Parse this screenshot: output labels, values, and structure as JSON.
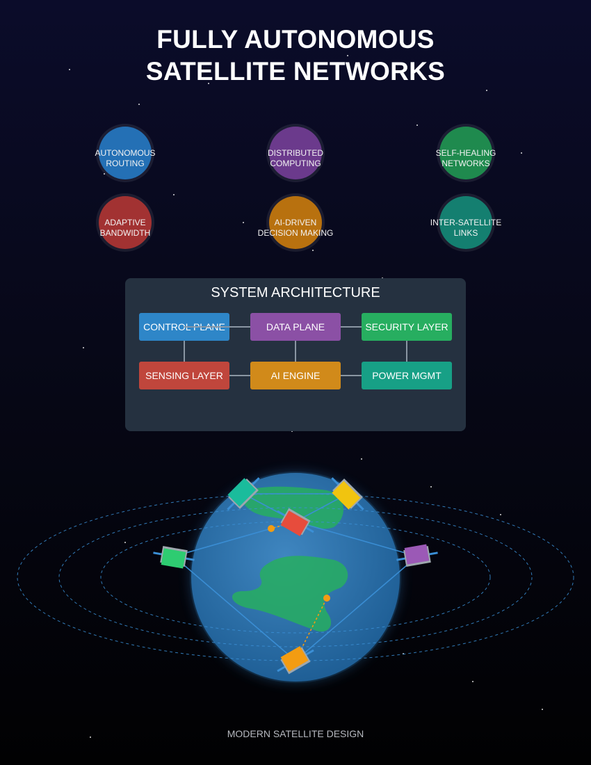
{
  "title": {
    "line1": "FULLY AUTONOMOUS",
    "line2": "SATELLITE NETWORKS"
  },
  "features": [
    {
      "line1": "AUTONOMOUS",
      "line2": "ROUTING",
      "color": "#2470b5"
    },
    {
      "line1": "DISTRIBUTED",
      "line2": "COMPUTING",
      "color": "#6b3a8c"
    },
    {
      "line1": "SELF-HEALING",
      "line2": "NETWORKS",
      "color": "#1f8a4e"
    },
    {
      "line1": "ADAPTIVE",
      "line2": "BANDWIDTH",
      "color": "#a23232"
    },
    {
      "line1": "AI-DRIVEN",
      "line2": "DECISION MAKING",
      "color": "#b8710f"
    },
    {
      "line1": "INTER-SATELLITE",
      "line2": "LINKS",
      "color": "#147f70"
    }
  ],
  "architecture": {
    "title": "SYSTEM ARCHITECTURE",
    "boxes": [
      {
        "label": "CONTROL PLANE",
        "color": "#2e86c8"
      },
      {
        "label": "DATA PLANE",
        "color": "#8b50a5"
      },
      {
        "label": "SECURITY LAYER",
        "color": "#27ae60"
      },
      {
        "label": "SENSING LAYER",
        "color": "#c0463c"
      },
      {
        "label": "AI ENGINE",
        "color": "#d18a1a"
      },
      {
        "label": "POWER MGMT",
        "color": "#17a086"
      }
    ]
  },
  "satellite_colors": [
    "#1abc9c",
    "#f1c40f",
    "#e74c3c",
    "#2ecc71",
    "#9b59b6",
    "#f39c12"
  ],
  "footer": "MODERN SATELLITE DESIGN"
}
